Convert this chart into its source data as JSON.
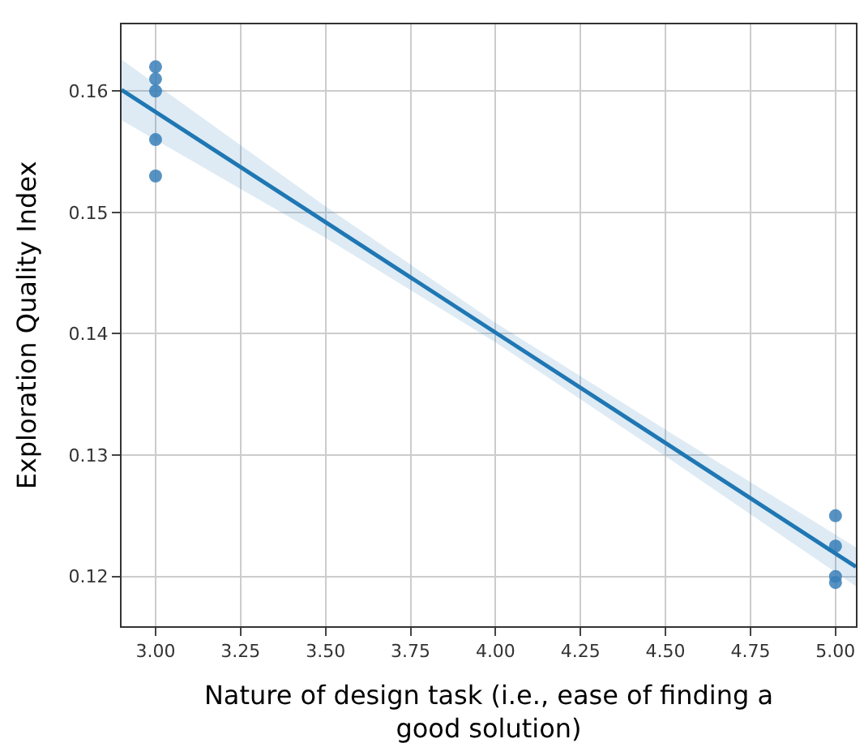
{
  "chart_data": {
    "type": "scatter",
    "xlabel": "Nature of design task (i.e., ease of finding a\ngood solution)",
    "ylabel": "Exploration Quality Index",
    "series": [
      {
        "color": "#3a7fb8",
        "x": [
          3,
          3,
          3,
          3,
          3,
          5,
          5,
          5,
          5
        ],
        "values": [
          0.162,
          0.161,
          0.16,
          0.156,
          0.153,
          0.125,
          0.1225,
          0.12,
          0.1195
        ],
        "marker": "circle"
      },
      {
        "type": "line",
        "color": "#1f77b4",
        "x": [
          2.9,
          3.5,
          4.0,
          4.5,
          5.06
        ],
        "values": [
          0.1601,
          0.1492,
          0.1401,
          0.131,
          0.1208
        ],
        "lower": [
          0.1576,
          0.1479,
          0.1393,
          0.1299,
          0.1192
        ],
        "upper": [
          0.1626,
          0.1505,
          0.1409,
          0.1321,
          0.1224
        ],
        "marker": "none"
      }
    ],
    "xlim": [
      2.9,
      5.06
    ],
    "ylim": [
      0.1159,
      0.1655
    ],
    "xticks": [
      {
        "value": 3,
        "label": "3.00"
      },
      {
        "value": 3.25,
        "label": "3.25"
      },
      {
        "value": 3.5,
        "label": "3.50"
      },
      {
        "value": 3.75,
        "label": "3.75"
      },
      {
        "value": 4,
        "label": "4.00"
      },
      {
        "value": 4.25,
        "label": "4.25"
      },
      {
        "value": 4.5,
        "label": "4.50"
      },
      {
        "value": 4.75,
        "label": "4.75"
      },
      {
        "value": 5,
        "label": "5.00"
      }
    ],
    "yticks": [
      0.12,
      0.13,
      0.14,
      0.15,
      0.16
    ],
    "grid": true
  }
}
